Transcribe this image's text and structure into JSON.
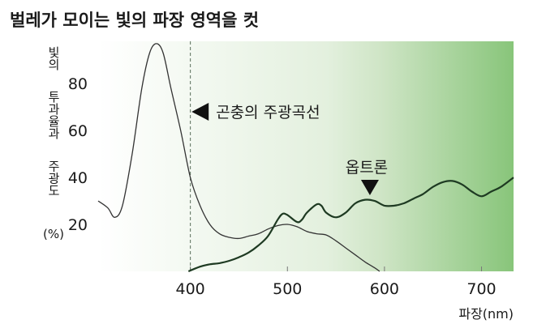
{
  "chart_data": {
    "type": "line",
    "title": "벌레가 모이는 빛의 파장 영역을 컷",
    "xlabel": "파장(nm)",
    "ylabel_lines": [
      "빛의",
      "투과율과",
      "주광도",
      "(%)"
    ],
    "xlim": [
      305,
      733
    ],
    "ylim": [
      0,
      98
    ],
    "xticks": [
      400,
      500,
      600,
      700
    ],
    "yticks": [
      20,
      40,
      60,
      80
    ],
    "grid": false,
    "background_gradient": [
      "#ffffff",
      "#e3f0de",
      "#cfe5c6",
      "#88c57a"
    ],
    "reference_line": {
      "x": 400,
      "style": "dashed"
    },
    "series": [
      {
        "name": "곤충의 주광곡선",
        "color": "#333333",
        "x": [
          305,
          315,
          322,
          330,
          340,
          350,
          358,
          365,
          372,
          380,
          390,
          400,
          410,
          420,
          430,
          440,
          450,
          460,
          470,
          480,
          490,
          500,
          510,
          520,
          530,
          540,
          550,
          560,
          570,
          580,
          590,
          595
        ],
        "y": [
          30,
          27,
          23,
          28,
          50,
          78,
          93,
          97,
          93,
          78,
          60,
          40,
          28,
          20,
          16,
          14.5,
          14,
          15,
          16,
          18,
          19.5,
          20,
          19,
          17,
          16,
          15.5,
          13,
          10,
          7,
          4,
          1.5,
          0
        ]
      },
      {
        "name": "옵트론",
        "color": "#1e3a22",
        "x": [
          398,
          410,
          420,
          430,
          440,
          450,
          460,
          470,
          480,
          490,
          495,
          500,
          510,
          515,
          520,
          530,
          535,
          540,
          550,
          560,
          570,
          580,
          590,
          600,
          610,
          620,
          630,
          640,
          650,
          660,
          670,
          680,
          690,
          700,
          710,
          720,
          733
        ],
        "y": [
          0,
          2,
          3,
          3.5,
          4.5,
          6,
          8,
          11,
          15,
          22,
          24.5,
          24,
          21,
          22,
          25,
          28.5,
          28,
          25,
          23,
          25,
          29,
          30.5,
          30,
          28,
          28,
          29,
          31,
          33,
          36,
          38,
          38.5,
          37,
          34,
          32,
          34,
          36,
          40
        ]
      }
    ],
    "annotations": [
      {
        "text": "곤충의 주광곡선",
        "marker": "left-triangle",
        "x": 408,
        "y": 68
      },
      {
        "text": "옵트론",
        "marker": "down-triangle",
        "x": 585,
        "y": 34.5
      }
    ]
  }
}
